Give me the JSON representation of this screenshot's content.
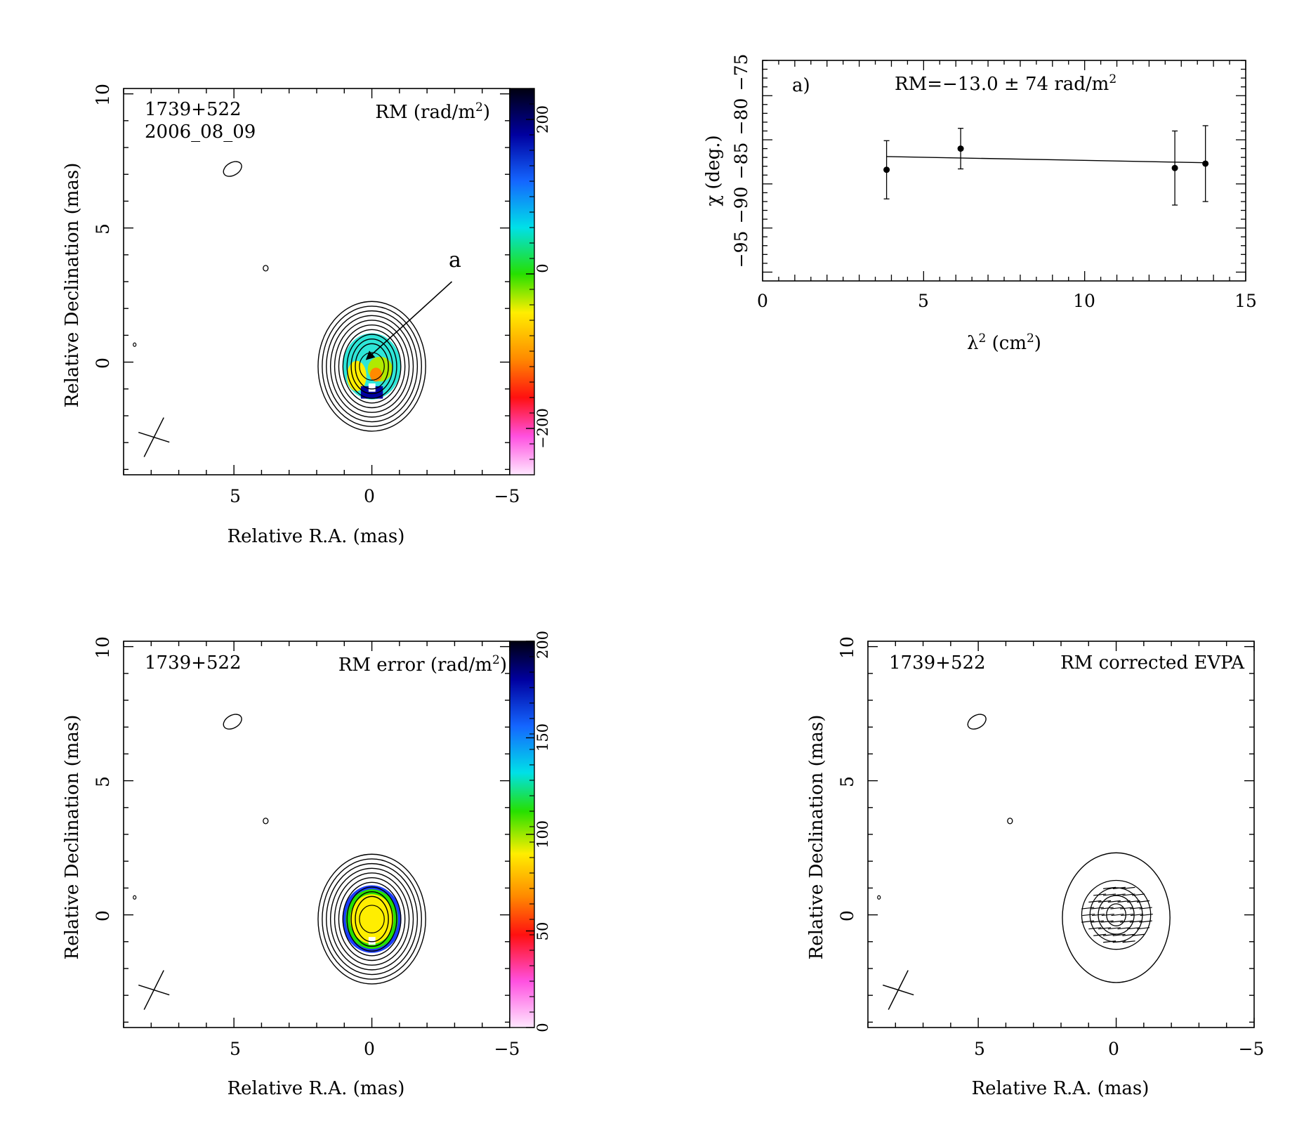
{
  "chart_data": [
    {
      "type": "heatmap",
      "source": "1739+522",
      "epoch": "2006_08_09",
      "map_label": "RM (rad/m",
      "map_label_sup": "2",
      "map_label_close": ")",
      "xlabel": "Relative R.A. (mas)",
      "ylabel": "Relative Declination (mas)",
      "xlim": [
        9,
        -5
      ],
      "ylim": [
        -4.2,
        10.2
      ],
      "x_ticks": [
        "5",
        "0",
        "−5"
      ],
      "y_ticks": [
        "0",
        "5",
        "10"
      ],
      "colorbar": {
        "range": [
          -260,
          240
        ],
        "ticks": [
          "−200",
          "0",
          "200"
        ],
        "tick_values": [
          -200,
          0,
          200
        ]
      },
      "annotation": {
        "text": "a",
        "from": [
          -2.9,
          3.0
        ],
        "to": [
          0.2,
          0.1
        ]
      },
      "peak_rm_value": 30,
      "beam": {
        "center": [
          7.9,
          -2.8
        ]
      }
    },
    {
      "type": "scatter",
      "panel_label": "a)",
      "fit_label": "RM=−13.0 ± 74 rad/m",
      "fit_label_sup": "2",
      "xlabel": "λ",
      "xlabel_sup": "2",
      "xlabel_rest": " (cm",
      "xlabel_sup2": "2",
      "xlabel_close": ")",
      "ylabel": "χ (deg.)",
      "xlim": [
        0,
        15
      ],
      "ylim": [
        -101,
        -76
      ],
      "x_ticks": [
        "0",
        "5",
        "10",
        "15"
      ],
      "y_ticks": [
        "−95",
        "−90",
        "−85",
        "−80",
        "−75"
      ],
      "points": [
        {
          "x": 3.85,
          "y": -88.4,
          "err": 3.3
        },
        {
          "x": 6.15,
          "y": -86.0,
          "err": 2.3
        },
        {
          "x": 12.8,
          "y": -88.2,
          "err": 4.2
        },
        {
          "x": 13.75,
          "y": -87.7,
          "err": 4.3
        }
      ],
      "fit": {
        "x": [
          3.85,
          13.75
        ],
        "y": [
          -86.9,
          -87.6
        ]
      }
    },
    {
      "type": "heatmap",
      "source": "1739+522",
      "map_label": "RM error (rad/m",
      "map_label_sup": "2",
      "map_label_close": ")",
      "xlabel": "Relative R.A. (mas)",
      "ylabel": "Relative Declination (mas)",
      "xlim": [
        9,
        -5
      ],
      "ylim": [
        -4.2,
        10.2
      ],
      "x_ticks": [
        "5",
        "0",
        "−5"
      ],
      "y_ticks": [
        "0",
        "5",
        "10"
      ],
      "colorbar": {
        "range": [
          0,
          200
        ],
        "ticks": [
          "0",
          "50",
          "100",
          "150",
          "200"
        ],
        "tick_values": [
          0,
          50,
          100,
          150,
          200
        ]
      },
      "beam": {
        "center": [
          7.9,
          -2.8
        ]
      }
    },
    {
      "type": "heatmap",
      "source": "1739+522",
      "map_label": "RM corrected EVPA",
      "xlabel": "Relative R.A. (mas)",
      "ylabel": "Relative Declination (mas)",
      "xlim": [
        9,
        -5
      ],
      "ylim": [
        -4.2,
        10.2
      ],
      "x_ticks": [
        "5",
        "0",
        "−5"
      ],
      "y_ticks": [
        "0",
        "5",
        "10"
      ],
      "beam": {
        "center": [
          7.9,
          -2.8
        ]
      }
    }
  ]
}
